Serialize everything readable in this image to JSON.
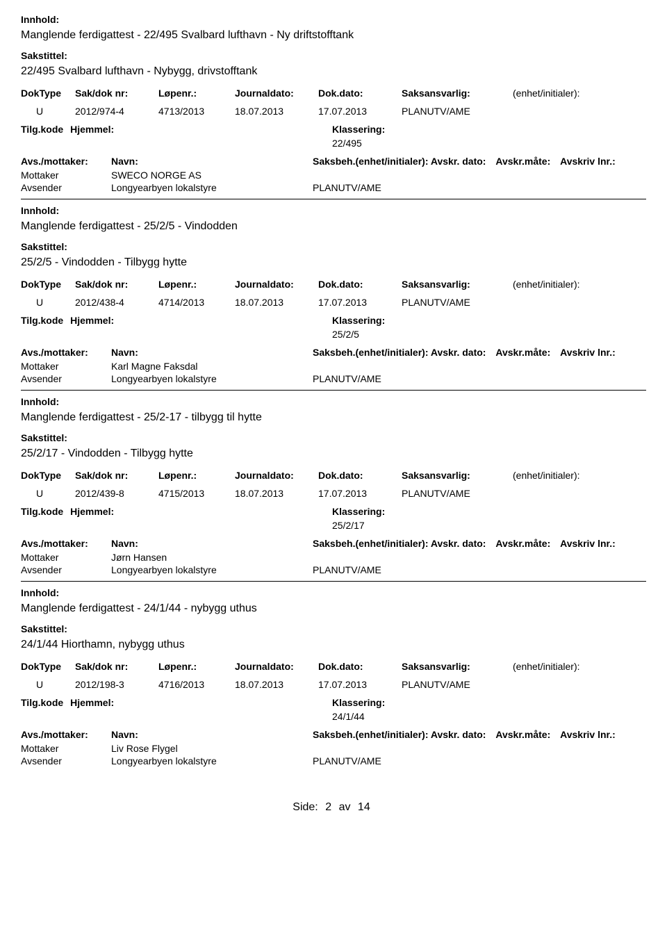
{
  "labels": {
    "innhold": "Innhold:",
    "sakstittel": "Sakstittel:",
    "doktype": "DokType",
    "sakdoknr": "Sak/dok nr:",
    "lopenr": "Løpenr.:",
    "journaldato": "Journaldato:",
    "dokdato": "Dok.dato:",
    "saksansvarlig": "Saksansvarlig:",
    "enhetinitialer": "(enhet/initialer):",
    "tilgkode": "Tilg.kode",
    "hjemmel": "Hjemmel:",
    "klassering": "Klassering:",
    "avsmottaker": "Avs./mottaker:",
    "navn": "Navn:",
    "saksbeh": "Saksbeh.",
    "saksbeh_full": "Saksbeh.(enhet/initialer): Avskr. dato:",
    "avskrmate": "Avskr.måte:",
    "avskrivlnr": "Avskriv lnr.:",
    "mottaker": "Mottaker",
    "avsender": "Avsender"
  },
  "records": [
    {
      "innhold": "Manglende ferdigattest - 22/495 Svalbard lufthavn - Ny driftstofftank",
      "sakstittel": "22/495 Svalbard lufthavn - Nybygg, drivstofftank",
      "doktype": "U",
      "sakdoknr": "2012/974-4",
      "lopenr": "4713/2013",
      "journaldato": "18.07.2013",
      "dokdato": "17.07.2013",
      "saksansvarlig": "PLANUTV/AME",
      "klassering": "22/495",
      "mottaker_navn": "SWECO NORGE AS",
      "avsender_navn": "Longyearbyen lokalstyre",
      "avsender_dept": "PLANUTV/AME"
    },
    {
      "innhold": "Manglende ferdigattest - 25/2/5 - Vindodden",
      "sakstittel": "25/2/5 - Vindodden - Tilbygg hytte",
      "doktype": "U",
      "sakdoknr": "2012/438-4",
      "lopenr": "4714/2013",
      "journaldato": "18.07.2013",
      "dokdato": "17.07.2013",
      "saksansvarlig": "PLANUTV/AME",
      "klassering": "25/2/5",
      "mottaker_navn": "Karl Magne Faksdal",
      "avsender_navn": "Longyearbyen lokalstyre",
      "avsender_dept": "PLANUTV/AME"
    },
    {
      "innhold": "Manglende ferdigattest - 25/2-17 - tilbygg til hytte",
      "sakstittel": "25/2/17 - Vindodden - Tilbygg hytte",
      "doktype": "U",
      "sakdoknr": "2012/439-8",
      "lopenr": "4715/2013",
      "journaldato": "18.07.2013",
      "dokdato": "17.07.2013",
      "saksansvarlig": "PLANUTV/AME",
      "klassering": "25/2/17",
      "mottaker_navn": "Jørn Hansen",
      "avsender_navn": "Longyearbyen lokalstyre",
      "avsender_dept": "PLANUTV/AME"
    },
    {
      "innhold": "Manglende ferdigattest - 24/1/44 - nybygg uthus",
      "sakstittel": "24/1/44 Hiorthamn, nybygg uthus",
      "doktype": "U",
      "sakdoknr": "2012/198-3",
      "lopenr": "4716/2013",
      "journaldato": "18.07.2013",
      "dokdato": "17.07.2013",
      "saksansvarlig": "PLANUTV/AME",
      "klassering": "24/1/44",
      "mottaker_navn": "Liv Rose Flygel",
      "avsender_navn": "Longyearbyen lokalstyre",
      "avsender_dept": "PLANUTV/AME"
    }
  ],
  "footer": {
    "side_prefix": "Side:",
    "page_current": "2",
    "page_sep": "av",
    "page_total": "14"
  }
}
